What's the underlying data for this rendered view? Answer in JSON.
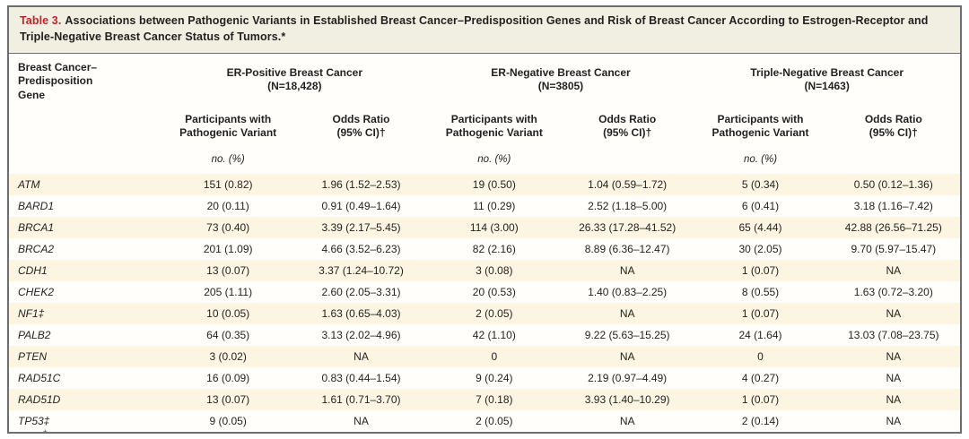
{
  "title": {
    "label": "Table 3.",
    "text": "Associations between Pathogenic Variants in Established Breast Cancer–Predisposition Genes and Risk of Breast Cancer According to Estrogen-Receptor and Triple-Negative Breast Cancer Status of Tumors.*"
  },
  "header": {
    "gene_column": "Breast Cancer–\nPredisposition\nGene",
    "groups": [
      {
        "title": "ER-Positive Breast Cancer",
        "n": "(N=18,428)"
      },
      {
        "title": "ER-Negative Breast Cancer",
        "n": "(N=3805)"
      },
      {
        "title": "Triple-Negative Breast Cancer",
        "n": "(N=1463)"
      }
    ],
    "group_lines": [
      "ER-Positive Breast Cancer\n(N=18,428)",
      "ER-Negative Breast Cancer\n(N=3805)",
      "Triple-Negative Breast Cancer\n(N=1463)"
    ],
    "participants_label": "Participants with\nPathogenic Variant",
    "odds_label": "Odds Ratio\n(95% CI)†",
    "unit_label": "no. (%)"
  },
  "rows": [
    {
      "gene": "ATM",
      "erpos_n": "151 (0.82)",
      "erpos_or": "1.96 (1.52–2.53)",
      "erneg_n": "19 (0.50)",
      "erneg_or": "1.04 (0.59–1.72)",
      "tn_n": "5 (0.34)",
      "tn_or": "0.50 (0.12–1.36)"
    },
    {
      "gene": "BARD1",
      "erpos_n": "20 (0.11)",
      "erpos_or": "0.91 (0.49–1.64)",
      "erneg_n": "11 (0.29)",
      "erneg_or": "2.52 (1.18–5.00)",
      "tn_n": "6 (0.41)",
      "tn_or": "3.18 (1.16–7.42)"
    },
    {
      "gene": "BRCA1",
      "erpos_n": "73 (0.40)",
      "erpos_or": "3.39 (2.17–5.45)",
      "erneg_n": "114 (3.00)",
      "erneg_or": "26.33 (17.28–41.52)",
      "tn_n": "65 (4.44)",
      "tn_or": "42.88 (26.56–71.25)"
    },
    {
      "gene": "BRCA2",
      "erpos_n": "201 (1.09)",
      "erpos_or": "4.66 (3.52–6.23)",
      "erneg_n": "82 (2.16)",
      "erneg_or": "8.89 (6.36–12.47)",
      "tn_n": "30 (2.05)",
      "tn_or": "9.70 (5.97–15.47)"
    },
    {
      "gene": "CDH1",
      "erpos_n": "13 (0.07)",
      "erpos_or": "3.37 (1.24–10.72)",
      "erneg_n": "3 (0.08)",
      "erneg_or": "NA",
      "tn_n": "1 (0.07)",
      "tn_or": "NA"
    },
    {
      "gene": "CHEK2",
      "erpos_n": "205 (1.11)",
      "erpos_or": "2.60 (2.05–3.31)",
      "erneg_n": "20 (0.53)",
      "erneg_or": "1.40 (0.83–2.25)",
      "tn_n": "8 (0.55)",
      "tn_or": "1.63 (0.72–3.20)"
    },
    {
      "gene": "NF1‡",
      "erpos_n": "10 (0.05)",
      "erpos_or": "1.63 (0.65–4.03)",
      "erneg_n": "2 (0.05)",
      "erneg_or": "NA",
      "tn_n": "1 (0.07)",
      "tn_or": "NA"
    },
    {
      "gene": "PALB2",
      "erpos_n": "64 (0.35)",
      "erpos_or": "3.13 (2.02–4.96)",
      "erneg_n": "42 (1.10)",
      "erneg_or": "9.22 (5.63–15.25)",
      "tn_n": "24 (1.64)",
      "tn_or": "13.03 (7.08–23.75)"
    },
    {
      "gene": "PTEN",
      "erpos_n": "3 (0.02)",
      "erpos_or": "NA",
      "erneg_n": "0",
      "erneg_or": "NA",
      "tn_n": "0",
      "tn_or": "NA"
    },
    {
      "gene": "RAD51C",
      "erpos_n": "16 (0.09)",
      "erpos_or": "0.83 (0.44–1.54)",
      "erneg_n": "9 (0.24)",
      "erneg_or": "2.19 (0.97–4.49)",
      "tn_n": "4 (0.27)",
      "tn_or": "NA"
    },
    {
      "gene": "RAD51D",
      "erpos_n": "13 (0.07)",
      "erpos_or": "1.61 (0.71–3.70)",
      "erneg_n": "7 (0.18)",
      "erneg_or": "3.93 (1.40–10.29)",
      "tn_n": "1 (0.07)",
      "tn_or": "NA"
    },
    {
      "gene": "TP53‡",
      "erpos_n": "9 (0.05)",
      "erpos_or": "NA",
      "erneg_n": "2 (0.05)",
      "erneg_or": "NA",
      "tn_n": "2 (0.14)",
      "tn_or": "NA"
    }
  ],
  "footnote_mark": "*",
  "colors": {
    "title_label_red": "#c0222a",
    "stripe_cream": "#fbf5e1",
    "title_band_bg": "#f1eee2",
    "frame_border": "#6d6e71",
    "text": "#231f20"
  }
}
